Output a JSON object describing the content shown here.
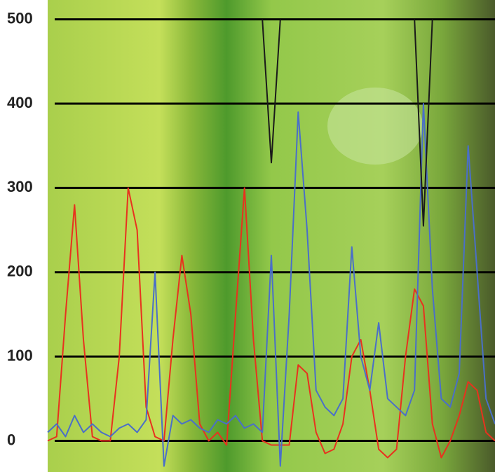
{
  "chart_data": {
    "type": "line",
    "x": [
      0,
      2,
      4,
      6,
      8,
      10,
      12,
      14,
      16,
      18,
      20,
      22,
      24,
      26,
      28,
      30,
      32,
      34,
      36,
      38,
      40,
      42,
      44,
      46,
      48,
      50,
      52,
      54,
      56,
      58,
      60,
      62,
      64,
      66,
      68,
      70,
      72,
      74,
      76,
      78,
      80,
      82,
      84,
      86,
      88,
      90,
      92,
      94,
      96,
      98,
      100
    ],
    "xlim": [
      0,
      100
    ],
    "ylim": [
      -37,
      523
    ],
    "yticks": [
      0,
      100,
      200,
      300,
      400,
      500
    ],
    "grid": true,
    "series": [
      {
        "color": "#e8321e",
        "values": [
          0,
          5,
          150,
          280,
          120,
          5,
          0,
          0,
          100,
          300,
          250,
          40,
          5,
          0,
          120,
          220,
          150,
          20,
          0,
          10,
          -5,
          150,
          300,
          120,
          0,
          -5,
          -5,
          -5,
          90,
          80,
          10,
          -15,
          -10,
          20,
          100,
          120,
          60,
          -10,
          -20,
          -10,
          100,
          180,
          160,
          20,
          -20,
          0,
          30,
          70,
          60,
          10,
          0
        ]
      },
      {
        "color": "#4a6fc8",
        "values": [
          10,
          20,
          5,
          30,
          10,
          20,
          10,
          5,
          15,
          20,
          10,
          25,
          200,
          -30,
          30,
          20,
          25,
          15,
          10,
          25,
          20,
          30,
          15,
          20,
          10,
          220,
          -30,
          150,
          390,
          250,
          60,
          40,
          30,
          50,
          230,
          100,
          60,
          140,
          50,
          40,
          30,
          60,
          400,
          180,
          50,
          40,
          80,
          350,
          200,
          50,
          20
        ]
      },
      {
        "color": "#1a1a1a",
        "values": [
          null,
          null,
          null,
          null,
          null,
          null,
          null,
          null,
          null,
          null,
          null,
          null,
          null,
          null,
          null,
          null,
          null,
          null,
          null,
          null,
          null,
          null,
          null,
          null,
          500,
          330,
          500,
          null,
          null,
          null,
          null,
          null,
          null,
          null,
          null,
          null,
          null,
          null,
          null,
          null,
          null,
          500,
          255,
          500,
          null,
          null,
          null,
          null,
          null,
          null,
          null
        ]
      }
    ]
  }
}
